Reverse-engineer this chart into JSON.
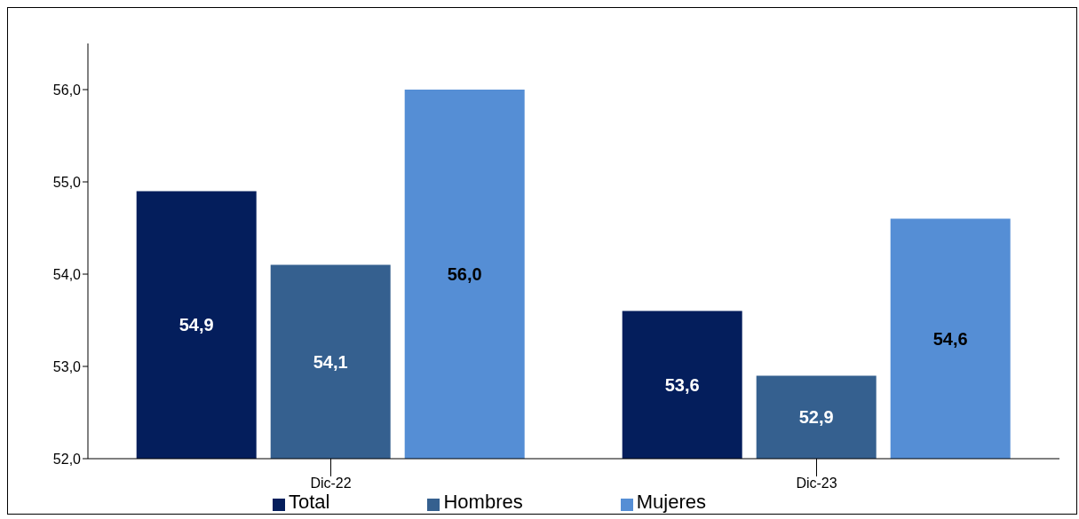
{
  "chart_data": {
    "type": "bar",
    "categories": [
      "Dic-22",
      "Dic-23"
    ],
    "series": [
      {
        "name": "Total",
        "color": "#041e5c",
        "values": [
          54.9,
          53.6
        ],
        "value_labels": [
          "54,9",
          "53,6"
        ]
      },
      {
        "name": "Hombres",
        "color": "#35608f",
        "values": [
          54.1,
          52.9
        ],
        "value_labels": [
          "54,1",
          "52,9"
        ]
      },
      {
        "name": "Mujeres",
        "color": "#558ed5",
        "values": [
          56.0,
          54.6
        ],
        "value_labels": [
          "56,0",
          "54,6"
        ]
      }
    ],
    "ylim": [
      52,
      56.5
    ],
    "yticks": [
      {
        "value": 52,
        "label": "52,0"
      },
      {
        "value": 53,
        "label": "53,0"
      },
      {
        "value": 54,
        "label": "54,0"
      },
      {
        "value": 55,
        "label": "55,0"
      },
      {
        "value": 56,
        "label": "56,0"
      }
    ],
    "grid": false,
    "legend": "bottom"
  }
}
